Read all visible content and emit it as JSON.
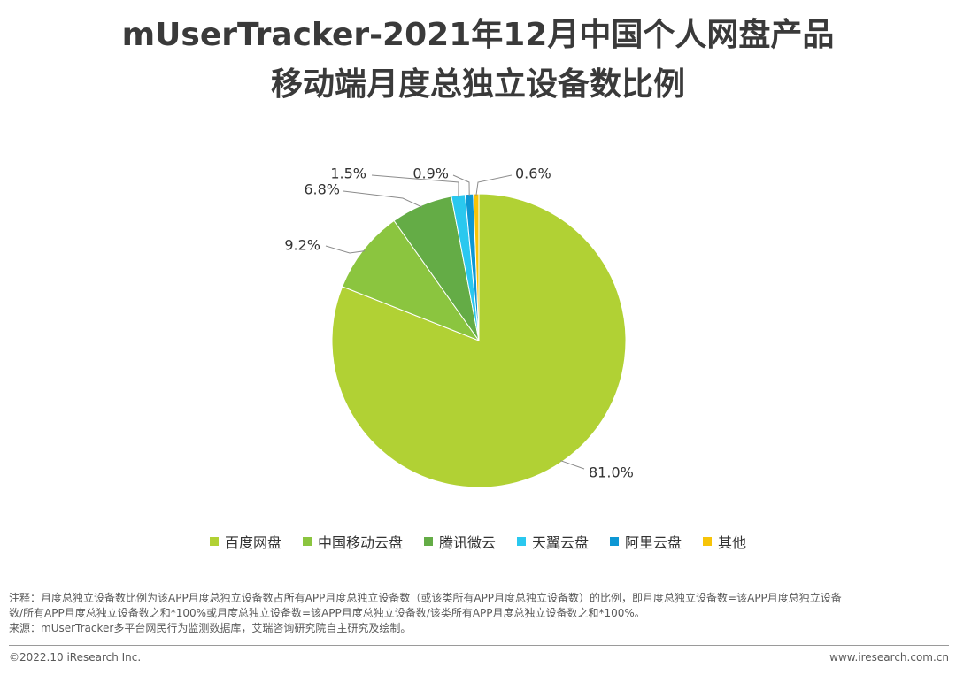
{
  "title": {
    "line1": "mUserTracker-2021年12月中国个人网盘产品",
    "line2": "移动端月度总独立设备数比例"
  },
  "chart_data": {
    "type": "pie",
    "categories": [
      "百度网盘",
      "中国移动云盘",
      "腾讯微云",
      "天翼云盘",
      "阿里云盘",
      "其他"
    ],
    "values": [
      81.0,
      9.2,
      6.8,
      1.5,
      0.9,
      0.6
    ],
    "labels": [
      "81.0%",
      "9.2%",
      "6.8%",
      "1.5%",
      "0.9%",
      "0.6%"
    ],
    "colors": [
      "#b1d134",
      "#8bc53f",
      "#64ac46",
      "#2ac8ef",
      "#0d97d4",
      "#f7c408"
    ],
    "legend_position": "bottom"
  },
  "notes": {
    "line1": "注释：月度总独立设备数比例为该APP月度总独立设备数占所有APP月度总独立设备数（或该类所有APP月度总独立设备数）的比例，即月度总独立设备数=该APP月度总独立设备",
    "line2": "数/所有APP月度总独立设备数之和*100%或月度总独立设备数=该APP月度总独立设备数/该类所有APP月度总独立设备数之和*100%。",
    "line3": "来源：mUserTracker多平台网民行为监测数据库，艾瑞咨询研究院自主研究及绘制。"
  },
  "footer": {
    "copyright": "©2022.10 iResearch Inc.",
    "website": "www.iresearch.com.cn"
  }
}
